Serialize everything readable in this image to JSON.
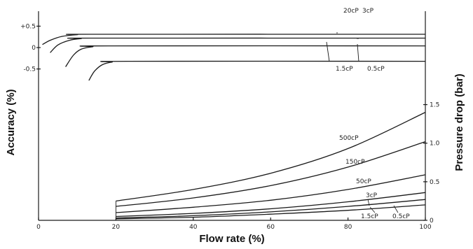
{
  "chart_data": {
    "type": "line",
    "x_axis": {
      "label": "Flow rate (%)",
      "ticks": [
        0,
        20,
        40,
        60,
        80,
        100
      ],
      "range": [
        0,
        100
      ]
    },
    "y_axis_left": {
      "label": "Accuracy (%)",
      "ticks": [
        {
          "value": 0.5,
          "label": "+0.5"
        },
        {
          "value": 0,
          "label": "0"
        },
        {
          "value": -0.5,
          "label": "-0.5"
        }
      ],
      "range": [
        -0.85,
        0.85
      ]
    },
    "y_axis_right": {
      "label": "Pressure drop (bar)",
      "ticks": [
        {
          "value": 1.5,
          "label": "1.5"
        },
        {
          "value": 1.0,
          "label": "1.0"
        },
        {
          "value": 0.5,
          "label": "0.5"
        },
        {
          "value": 0,
          "label": "0"
        }
      ],
      "range": [
        0,
        1.75
      ]
    },
    "accuracy_series": [
      {
        "name": "20cP",
        "x": [
          1,
          3,
          6,
          10,
          15,
          100
        ],
        "y": [
          0.07,
          0.17,
          0.26,
          0.3,
          0.31,
          0.31
        ]
      },
      {
        "name": "3cP",
        "x": [
          3,
          5,
          8,
          11,
          15,
          100
        ],
        "y": [
          -0.12,
          0.06,
          0.17,
          0.21,
          0.22,
          0.22
        ]
      },
      {
        "name": "1.5cP",
        "x": [
          7,
          9,
          11,
          14,
          18,
          100
        ],
        "y": [
          -0.45,
          -0.18,
          -0.04,
          0.02,
          0.04,
          0.04
        ]
      },
      {
        "name": "0.5cP",
        "x": [
          13,
          14.5,
          16.5,
          19,
          23,
          100
        ],
        "y": [
          -0.77,
          -0.55,
          -0.4,
          -0.34,
          -0.32,
          -0.32
        ]
      }
    ],
    "pressure_series": [
      {
        "name": "500cP",
        "x": [
          20,
          40,
          60,
          80,
          100
        ],
        "y": [
          0.25,
          0.4,
          0.61,
          0.93,
          1.4
        ]
      },
      {
        "name": "150cP",
        "x": [
          20,
          40,
          60,
          80,
          100
        ],
        "y": [
          0.18,
          0.29,
          0.45,
          0.69,
          1.02
        ]
      },
      {
        "name": "50cP",
        "x": [
          20,
          40,
          60,
          80,
          100
        ],
        "y": [
          0.1,
          0.17,
          0.26,
          0.4,
          0.59
        ]
      },
      {
        "name": "3cP",
        "x": [
          20,
          40,
          60,
          80,
          100
        ],
        "y": [
          0.05,
          0.09,
          0.15,
          0.24,
          0.36
        ]
      },
      {
        "name": "1.5cP",
        "x": [
          20,
          40,
          60,
          80,
          100
        ],
        "y": [
          0.03,
          0.06,
          0.11,
          0.18,
          0.27
        ]
      },
      {
        "name": "0.5cP",
        "x": [
          20,
          40,
          60,
          80,
          100
        ],
        "y": [
          0.02,
          0.04,
          0.08,
          0.13,
          0.2
        ]
      }
    ]
  }
}
